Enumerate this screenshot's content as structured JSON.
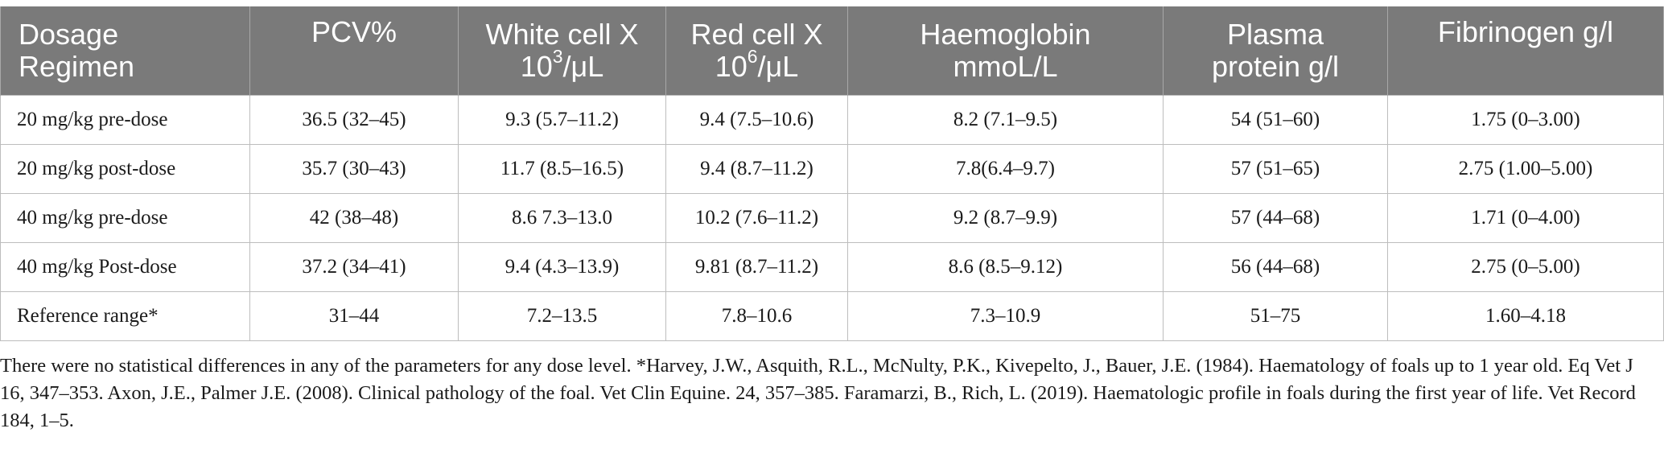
{
  "table": {
    "headers": [
      {
        "line1": "Dosage",
        "line2": "Regimen",
        "sup": "",
        "after": ""
      },
      {
        "line1": "PCV%",
        "line2": "",
        "sup": "",
        "after": ""
      },
      {
        "line1": "White cell X",
        "line2": "10",
        "sup": "3",
        "after": "/μL"
      },
      {
        "line1": "Red cell X",
        "line2": "10",
        "sup": "6",
        "after": "/μL"
      },
      {
        "line1": "Haemoglobin",
        "line2": "mmoL/L",
        "sup": "",
        "after": ""
      },
      {
        "line1": "Plasma",
        "line2": "protein g/l",
        "sup": "",
        "after": ""
      },
      {
        "line1": "Fibrinogen g/l",
        "line2": "",
        "sup": "",
        "after": ""
      }
    ],
    "rows": [
      [
        "20 mg/kg pre-dose",
        "36.5 (32–45)",
        "9.3 (5.7–11.2)",
        "9.4 (7.5–10.6)",
        "8.2 (7.1–9.5)",
        "54 (51–60)",
        "1.75 (0–3.00)"
      ],
      [
        "20 mg/kg post-dose",
        "35.7 (30–43)",
        "11.7 (8.5–16.5)",
        "9.4 (8.7–11.2)",
        "7.8(6.4–9.7)",
        "57 (51–65)",
        "2.75 (1.00–5.00)"
      ],
      [
        "40 mg/kg pre-dose",
        "42 (38–48)",
        "8.6 7.3–13.0",
        "10.2 (7.6–11.2)",
        "9.2 (8.7–9.9)",
        "57 (44–68)",
        "1.71 (0–4.00)"
      ],
      [
        "40 mg/kg Post-dose",
        "37.2 (34–41)",
        "9.4 (4.3–13.9)",
        "9.81 (8.7–11.2)",
        "8.6 (8.5–9.12)",
        "56 (44–68)",
        "2.75 (0–5.00)"
      ],
      [
        "Reference range*",
        "31–44",
        "7.2–13.5",
        "7.8–10.6",
        "7.3–10.9",
        "51–75",
        "1.60–4.18"
      ]
    ]
  },
  "footnote": "There were no statistical differences in any of the parameters for any dose level. *Harvey, J.W., Asquith, R.L., McNulty, P.K., Kivepelto, J., Bauer, J.E. (1984). Haematology of foals up to 1 year old. Eq Vet J 16, 347–353. Axon, J.E., Palmer J.E. (2008). Clinical pathology of the foal. Vet Clin Equine. 24, 357–385. Faramarzi, B., Rich, L. (2019). Haematologic profile in foals during the first year of life. Vet Record 184, 1–5."
}
